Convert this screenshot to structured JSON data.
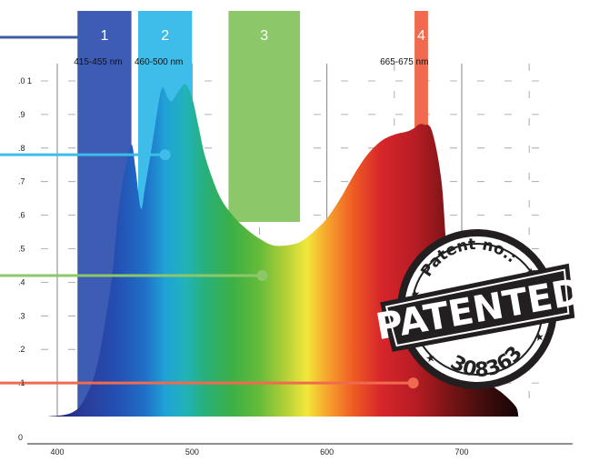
{
  "chart_data": {
    "type": "area",
    "title": "",
    "xlabel": "",
    "ylabel": "",
    "xlim": [
      380,
      750
    ],
    "ylim": [
      0,
      1.0
    ],
    "x_ticks": [
      {
        "value": 400,
        "label": "400"
      },
      {
        "value": 500,
        "label": "500"
      },
      {
        "value": 600,
        "label": "600"
      },
      {
        "value": 700,
        "label": "700"
      }
    ],
    "y_ticks": [
      {
        "value": 0,
        "label": "0"
      },
      {
        "value": 0.1,
        "label": ".1"
      },
      {
        "value": 0.2,
        "label": ".2"
      },
      {
        "value": 0.3,
        "label": ".3"
      },
      {
        "value": 0.4,
        "label": ".4"
      },
      {
        "value": 0.5,
        "label": ".5"
      },
      {
        "value": 0.6,
        "label": ".6"
      },
      {
        "value": 0.7,
        "label": ".7"
      },
      {
        "value": 0.8,
        "label": ".8"
      },
      {
        "value": 0.9,
        "label": ".9"
      },
      {
        "value": 1.0,
        "label": ".0 1"
      }
    ],
    "series": [
      {
        "x": [
          393,
          410,
          420,
          430,
          440,
          445,
          450,
          455,
          458,
          462,
          465,
          470,
          475,
          478,
          482,
          485,
          490,
          495,
          500,
          505,
          510,
          520,
          530,
          540,
          550,
          560,
          570,
          580,
          590,
          600,
          610,
          620,
          630,
          640,
          650,
          660,
          665,
          668,
          672,
          678,
          685,
          690,
          700,
          710,
          720,
          730,
          740,
          742
        ],
        "y": [
          0,
          0.01,
          0.05,
          0.16,
          0.4,
          0.6,
          0.73,
          0.81,
          0.74,
          0.62,
          0.68,
          0.8,
          0.93,
          0.98,
          0.95,
          0.94,
          0.97,
          0.99,
          0.95,
          0.86,
          0.77,
          0.66,
          0.6,
          0.56,
          0.53,
          0.51,
          0.51,
          0.52,
          0.55,
          0.59,
          0.65,
          0.72,
          0.78,
          0.82,
          0.84,
          0.85,
          0.86,
          0.87,
          0.87,
          0.85,
          0.7,
          0.45,
          0.25,
          0.15,
          0.1,
          0.07,
          0.03,
          0
        ]
      }
    ],
    "bands": [
      {
        "number": "1",
        "range_label": "415-455 nm",
        "from": 415,
        "to": 455,
        "color": "#3d5cb3"
      },
      {
        "number": "2",
        "range_label": "460-500 nm",
        "from": 460,
        "to": 500,
        "color": "#3ebdea"
      },
      {
        "number": "3",
        "range_label": "",
        "from": 527,
        "to": 580,
        "color": "#8cc76a"
      },
      {
        "number": "4",
        "range_label": "665-675 nm",
        "from": 665,
        "to": 675,
        "color": "#ef6a4f"
      }
    ],
    "pointer_lines": [
      {
        "color": "#3c5ca8",
        "y": 1.0,
        "end_x": null
      },
      {
        "color": "#3ebdea",
        "y": 0.78,
        "end_x": 480
      },
      {
        "color": "#8cc76a",
        "y": 0.42,
        "end_x": 552
      },
      {
        "color": "#ef6a4f",
        "y": 0.1,
        "end_x": 664
      }
    ],
    "grid": true
  },
  "stamp": {
    "top_text": "Patent no.:",
    "main_text": "PATENTED",
    "number": "308363",
    "color": "#231f20"
  }
}
